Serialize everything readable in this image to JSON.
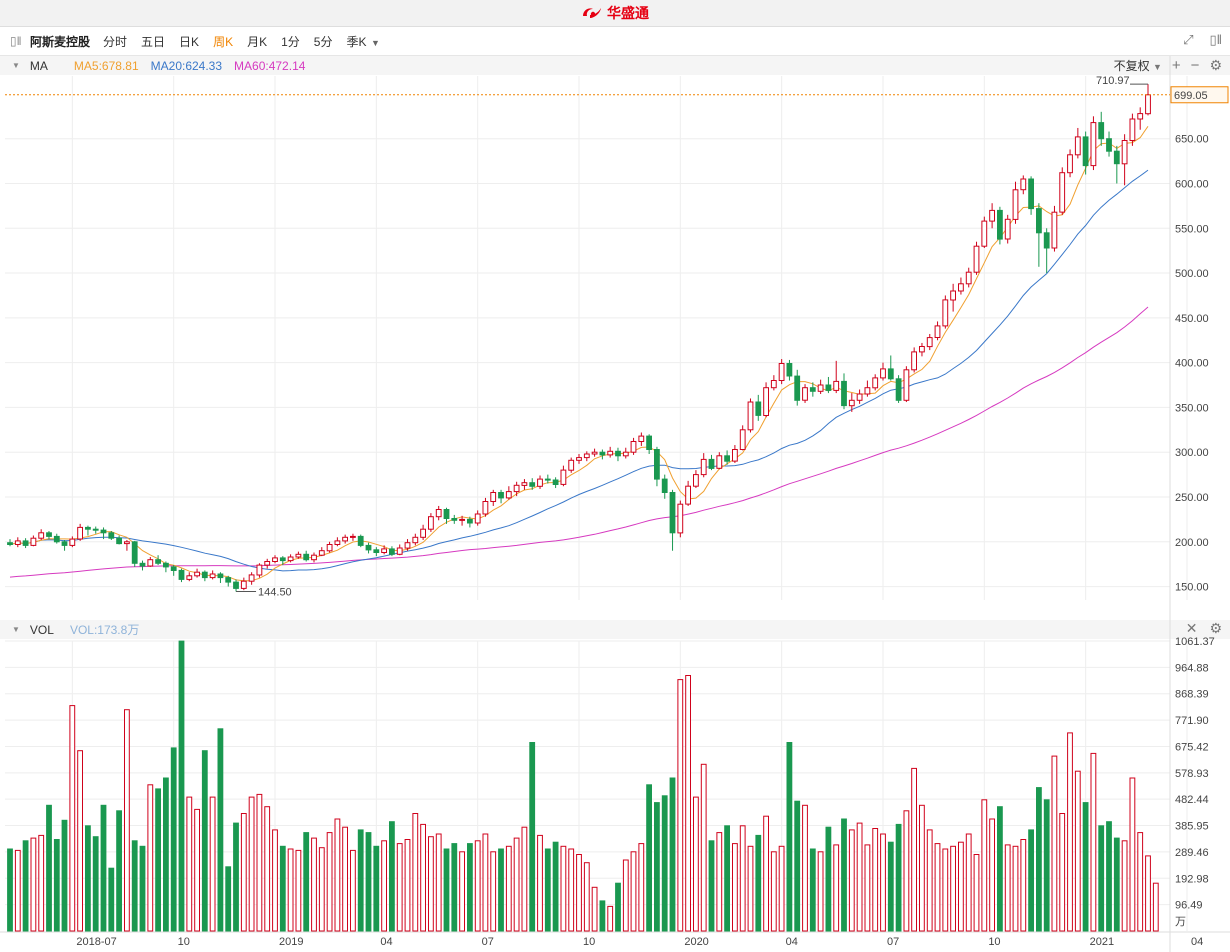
{
  "brand": {
    "name": "华盛通"
  },
  "toolbar": {
    "stock_name": "阿斯麦控股",
    "periods": [
      "分时",
      "五日",
      "日K",
      "周K",
      "月K",
      "1分",
      "5分",
      "季K"
    ],
    "active_period": "周K"
  },
  "legend": {
    "indicator": "MA",
    "ma5": "MA5:678.81",
    "ma20": "MA20:624.33",
    "ma60": "MA60:472.14",
    "adjust": "不复权"
  },
  "volume_legend": {
    "indicator": "VOL",
    "value": "VOL:173.8万"
  },
  "colors": {
    "up": "#d0021b",
    "down": "#1a9850",
    "ma5": "#f0a030",
    "ma20": "#3a78c9",
    "ma60": "#d63ac0",
    "last": "#f08300"
  },
  "chart_data": {
    "type": "candlestick",
    "price_axis": {
      "ticks": [
        "150.00",
        "200.00",
        "250.00",
        "300.00",
        "350.00",
        "400.00",
        "450.00",
        "500.00",
        "550.00",
        "600.00",
        "650.00"
      ],
      "range": [
        135,
        720
      ]
    },
    "last_price": "699.05",
    "high_mark": "710.97",
    "low_mark": "144.50",
    "volume_axis": {
      "ticks": [
        "1061.37",
        "964.88",
        "868.39",
        "771.90",
        "675.42",
        "578.93",
        "482.44",
        "385.95",
        "289.46",
        "192.98",
        "96.49"
      ],
      "unit": "万",
      "range": [
        0,
        1061.37
      ]
    },
    "x_axis": {
      "labels": [
        "2018-07",
        "10",
        "2019",
        "04",
        "07",
        "10",
        "2020",
        "04",
        "07",
        "10",
        "2021",
        "04"
      ],
      "positions": [
        8,
        21,
        34,
        47,
        60,
        73,
        86,
        99,
        112,
        125,
        138,
        151
      ]
    },
    "candles": [
      [
        199,
        197,
        203,
        195
      ],
      [
        197,
        201,
        205,
        194
      ],
      [
        201,
        196,
        204,
        193
      ],
      [
        196,
        204,
        207,
        195
      ],
      [
        204,
        210,
        214,
        202
      ],
      [
        210,
        206,
        212,
        203
      ],
      [
        206,
        200,
        209,
        198
      ],
      [
        200,
        196,
        202,
        190
      ],
      [
        196,
        203,
        206,
        194
      ],
      [
        203,
        216,
        220,
        201
      ],
      [
        216,
        214,
        218,
        207
      ],
      [
        214,
        213,
        217,
        209
      ],
      [
        213,
        210,
        216,
        203
      ],
      [
        210,
        204,
        212,
        202
      ],
      [
        204,
        198,
        207,
        197
      ],
      [
        198,
        200,
        202,
        190
      ],
      [
        200,
        176,
        201,
        172
      ],
      [
        176,
        173,
        179,
        168
      ],
      [
        173,
        180,
        183,
        172
      ],
      [
        180,
        176,
        185,
        174
      ],
      [
        176,
        172,
        178,
        166
      ],
      [
        172,
        168,
        174,
        162
      ],
      [
        168,
        158,
        170,
        155
      ],
      [
        158,
        162,
        166,
        156
      ],
      [
        162,
        166,
        170,
        160
      ],
      [
        166,
        160,
        168,
        156
      ],
      [
        160,
        164,
        168,
        158
      ],
      [
        164,
        160,
        166,
        154
      ],
      [
        160,
        155,
        162,
        150
      ],
      [
        155,
        148,
        158,
        144.5
      ],
      [
        148,
        156,
        160,
        146
      ],
      [
        156,
        163,
        166,
        152
      ],
      [
        163,
        174,
        176,
        160
      ],
      [
        174,
        178,
        181,
        170
      ],
      [
        178,
        182,
        185,
        176
      ],
      [
        182,
        179,
        184,
        174
      ],
      [
        179,
        183,
        186,
        177
      ],
      [
        183,
        186,
        189,
        181
      ],
      [
        186,
        180,
        190,
        178
      ],
      [
        180,
        185,
        188,
        177
      ],
      [
        185,
        190,
        194,
        184
      ],
      [
        190,
        197,
        200,
        188
      ],
      [
        197,
        201,
        205,
        195
      ],
      [
        201,
        205,
        208,
        198
      ],
      [
        205,
        206,
        209,
        201
      ],
      [
        206,
        196,
        208,
        194
      ],
      [
        196,
        191,
        199,
        187
      ],
      [
        191,
        188,
        194,
        184
      ],
      [
        188,
        192,
        196,
        186
      ],
      [
        192,
        186,
        195,
        184
      ],
      [
        186,
        193,
        197,
        185
      ],
      [
        193,
        199,
        203,
        190
      ],
      [
        199,
        205,
        209,
        196
      ],
      [
        205,
        214,
        219,
        202
      ],
      [
        214,
        228,
        232,
        211
      ],
      [
        228,
        236,
        240,
        224
      ],
      [
        236,
        226,
        238,
        220
      ],
      [
        226,
        224,
        230,
        220
      ],
      [
        224,
        225,
        229,
        218
      ],
      [
        225,
        221,
        228,
        216
      ],
      [
        221,
        231,
        235,
        218
      ],
      [
        231,
        245,
        249,
        228
      ],
      [
        245,
        255,
        258,
        240
      ],
      [
        255,
        249,
        258,
        243
      ],
      [
        249,
        256,
        262,
        247
      ],
      [
        256,
        263,
        267,
        251
      ],
      [
        263,
        266,
        270,
        258
      ],
      [
        266,
        262,
        271,
        258
      ],
      [
        262,
        270,
        274,
        259
      ],
      [
        270,
        269,
        275,
        265
      ],
      [
        269,
        264,
        272,
        260
      ],
      [
        264,
        280,
        285,
        262
      ],
      [
        280,
        291,
        294,
        277
      ],
      [
        291,
        294,
        298,
        287
      ],
      [
        294,
        298,
        301,
        290
      ],
      [
        298,
        300,
        304,
        295
      ],
      [
        300,
        297,
        303,
        292
      ],
      [
        297,
        301,
        306,
        294
      ],
      [
        301,
        296,
        305,
        290
      ],
      [
        296,
        300,
        305,
        293
      ],
      [
        300,
        312,
        316,
        297
      ],
      [
        312,
        318,
        322,
        307
      ],
      [
        318,
        303,
        320,
        298
      ],
      [
        303,
        270,
        306,
        262
      ],
      [
        270,
        255,
        275,
        248
      ],
      [
        255,
        210,
        258,
        190
      ],
      [
        210,
        242,
        246,
        205
      ],
      [
        242,
        262,
        268,
        240
      ],
      [
        262,
        275,
        280,
        260
      ],
      [
        275,
        292,
        299,
        272
      ],
      [
        292,
        282,
        297,
        280
      ],
      [
        282,
        296,
        300,
        281
      ],
      [
        296,
        290,
        302,
        286
      ],
      [
        290,
        303,
        308,
        288
      ],
      [
        303,
        325,
        330,
        302
      ],
      [
        325,
        356,
        360,
        322
      ],
      [
        356,
        341,
        364,
        335
      ],
      [
        341,
        372,
        378,
        339
      ],
      [
        372,
        380,
        386,
        369
      ],
      [
        380,
        399,
        404,
        376
      ],
      [
        399,
        385,
        403,
        380
      ],
      [
        385,
        358,
        392,
        352
      ],
      [
        358,
        372,
        376,
        355
      ],
      [
        372,
        368,
        378,
        362
      ],
      [
        368,
        375,
        381,
        365
      ],
      [
        375,
        369,
        384,
        366
      ],
      [
        369,
        379,
        402,
        366
      ],
      [
        379,
        352,
        388,
        348
      ],
      [
        352,
        358,
        366,
        345
      ],
      [
        358,
        365,
        370,
        354
      ],
      [
        365,
        372,
        380,
        362
      ],
      [
        372,
        383,
        387,
        369
      ],
      [
        383,
        393,
        400,
        380
      ],
      [
        393,
        382,
        408,
        380
      ],
      [
        382,
        358,
        386,
        355
      ],
      [
        358,
        392,
        396,
        356
      ],
      [
        392,
        412,
        417,
        389
      ],
      [
        412,
        418,
        422,
        407
      ],
      [
        418,
        428,
        432,
        414
      ],
      [
        428,
        441,
        446,
        425
      ],
      [
        441,
        470,
        475,
        438
      ],
      [
        470,
        480,
        488,
        457
      ],
      [
        480,
        488,
        495,
        476
      ],
      [
        488,
        501,
        506,
        484
      ],
      [
        501,
        530,
        535,
        498
      ],
      [
        530,
        558,
        563,
        528
      ],
      [
        558,
        570,
        578,
        550
      ],
      [
        570,
        538,
        574,
        532
      ],
      [
        538,
        560,
        565,
        533
      ],
      [
        560,
        593,
        602,
        555
      ],
      [
        593,
        605,
        609,
        588
      ],
      [
        605,
        572,
        608,
        565
      ],
      [
        572,
        545,
        578,
        507
      ],
      [
        545,
        528,
        550,
        500
      ],
      [
        528,
        568,
        575,
        524
      ],
      [
        568,
        612,
        618,
        565
      ],
      [
        612,
        632,
        638,
        607
      ],
      [
        632,
        652,
        662,
        628
      ],
      [
        652,
        620,
        658,
        610
      ],
      [
        620,
        668,
        675,
        615
      ],
      [
        668,
        650,
        680,
        642
      ],
      [
        650,
        636,
        658,
        630
      ],
      [
        636,
        622,
        642,
        600
      ],
      [
        622,
        648,
        655,
        598
      ],
      [
        648,
        672,
        678,
        642
      ],
      [
        672,
        678,
        685,
        660
      ],
      [
        678,
        699.05,
        710.97,
        676
      ]
    ],
    "volumes": [
      300,
      295,
      330,
      340,
      350,
      460,
      335,
      405,
      825,
      660,
      385,
      345,
      460,
      230,
      440,
      810,
      330,
      310,
      535,
      520,
      560,
      670,
      1061,
      490,
      445,
      660,
      490,
      740,
      235,
      395,
      430,
      490,
      500,
      455,
      370,
      310,
      300,
      295,
      360,
      340,
      305,
      360,
      410,
      380,
      295,
      370,
      360,
      310,
      330,
      400,
      320,
      335,
      430,
      390,
      345,
      355,
      300,
      320,
      290,
      320,
      330,
      355,
      290,
      300,
      310,
      340,
      380,
      690,
      350,
      300,
      325,
      310,
      300,
      280,
      250,
      160,
      110,
      90,
      175,
      260,
      290,
      320,
      535,
      470,
      495,
      560,
      920,
      935,
      490,
      610,
      330,
      360,
      385,
      320,
      385,
      310,
      350,
      420,
      290,
      310,
      690,
      475,
      460,
      300,
      290,
      380,
      315,
      410,
      370,
      395,
      315,
      375,
      355,
      325,
      390,
      440,
      595,
      460,
      370,
      320,
      300,
      310,
      325,
      355,
      280,
      480,
      410,
      455,
      315,
      310,
      335,
      370,
      525,
      480,
      640,
      430,
      725,
      585,
      470,
      650,
      385,
      400,
      340,
      330,
      560,
      360,
      275,
      175
    ]
  }
}
